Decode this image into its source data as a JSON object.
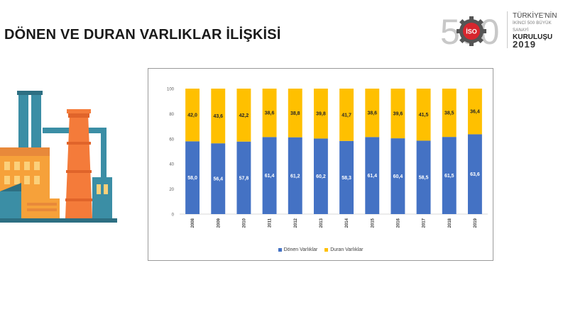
{
  "slide": {
    "title": "DÖNEN VE DURAN VARLIKLAR İLİŞKİSİ"
  },
  "logo": {
    "number": "500",
    "badge": "İSO",
    "line1": "TÜRKİYE'NİN",
    "line2": "İKİNCİ 500 BÜYÜK SANAYİ",
    "line3": "KURULUŞU",
    "year": "2019"
  },
  "colors": {
    "donen": "#4472C4",
    "duran": "#FFC000",
    "axis": "#d9d9d9",
    "title_text": "#1a1a1a"
  },
  "chart_data": {
    "type": "bar",
    "stacked": true,
    "categories": [
      "2008",
      "2009",
      "2010",
      "2011",
      "2012",
      "2013",
      "2014",
      "2015",
      "2016",
      "2017",
      "2018",
      "2019"
    ],
    "series": [
      {
        "name": "Dönen Varlıklar",
        "values": [
          58.0,
          56.4,
          57.8,
          61.4,
          61.2,
          60.2,
          58.3,
          61.4,
          60.4,
          58.5,
          61.5,
          63.6
        ],
        "labels": [
          "58,0",
          "56,4",
          "57,8",
          "61,4",
          "61,2",
          "60,2",
          "58,3",
          "61,4",
          "60,4",
          "58,5",
          "61,5",
          "63,6"
        ]
      },
      {
        "name": "Duran Varlıklar",
        "values": [
          42.0,
          43.6,
          42.2,
          38.6,
          38.8,
          39.8,
          41.7,
          38.6,
          39.6,
          41.5,
          38.5,
          36.4
        ],
        "labels": [
          "42,0",
          "43,6",
          "42,2",
          "38,6",
          "38,8",
          "39,8",
          "41,7",
          "38,6",
          "39,6",
          "41,5",
          "38,5",
          "36,4"
        ]
      }
    ],
    "ylim": [
      0,
      100
    ],
    "yticks": [
      0,
      20,
      40,
      60,
      80,
      100
    ],
    "legend_position": "bottom",
    "grid": false
  }
}
